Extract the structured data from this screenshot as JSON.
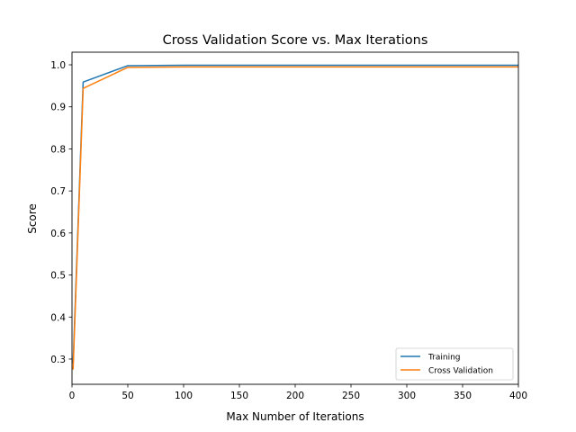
{
  "chart_data": {
    "type": "line",
    "title": "Cross Validation Score vs. Max Iterations",
    "xlabel": "Max Number of Iterations",
    "ylabel": "Score",
    "xlim": [
      0,
      400
    ],
    "ylim": [
      0.24,
      1.03
    ],
    "xticks": [
      0,
      50,
      100,
      150,
      200,
      250,
      300,
      350,
      400
    ],
    "yticks": [
      0.3,
      0.4,
      0.5,
      0.6,
      0.7,
      0.8,
      0.9,
      1.0
    ],
    "ytick_labels": [
      "0.3",
      "0.4",
      "0.5",
      "0.6",
      "0.7",
      "0.8",
      "0.9",
      "1.0"
    ],
    "grid": false,
    "legend_position": "lower-right",
    "series": [
      {
        "name": "Training",
        "color": "#1f77b4",
        "x": [
          1,
          10,
          50,
          100,
          150,
          200,
          250,
          300,
          350,
          400
        ],
        "y": [
          0.29,
          0.959,
          0.998,
          0.999,
          0.999,
          0.999,
          0.999,
          0.999,
          0.999,
          0.999
        ]
      },
      {
        "name": "Cross Validation",
        "color": "#ff7f0e",
        "x": [
          1,
          10,
          50,
          100,
          150,
          200,
          250,
          300,
          350,
          400
        ],
        "y": [
          0.275,
          0.944,
          0.994,
          0.995,
          0.995,
          0.995,
          0.995,
          0.995,
          0.995,
          0.995
        ]
      }
    ]
  }
}
